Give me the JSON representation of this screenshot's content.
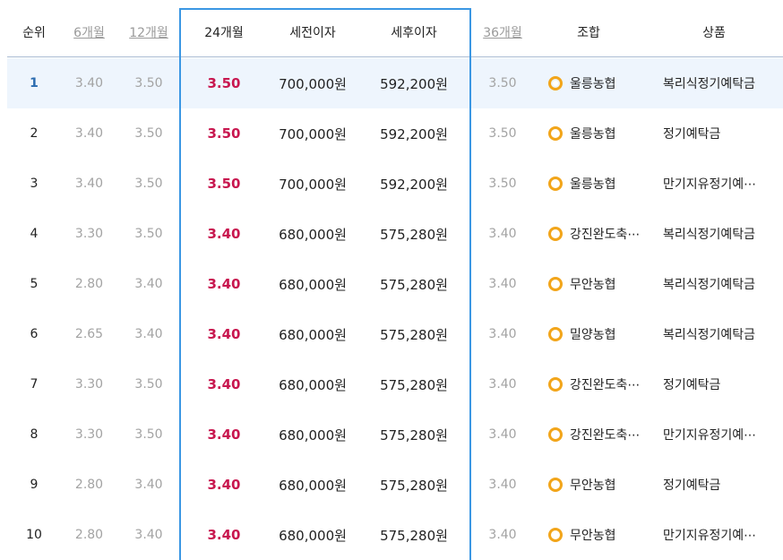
{
  "headers": {
    "rank": "순위",
    "m6": "6개월",
    "m12": "12개월",
    "m24": "24개월",
    "pretax": "세전이자",
    "posttax": "세후이자",
    "m36": "36개월",
    "bank": "조합",
    "product": "상품"
  },
  "colors": {
    "accent": "#3b97e3",
    "rate": "#c8174f",
    "rank_highlight": "#2c6cb0",
    "medal": "#f2a51a"
  },
  "medal_icon": "medal-icon",
  "rows": [
    {
      "rank": "1",
      "m6": "3.40",
      "m12": "3.50",
      "m24": "3.50",
      "pretax": "700,000원",
      "posttax": "592,200원",
      "m36": "3.50",
      "bank": "울릉농협",
      "product": "복리식정기예탁금"
    },
    {
      "rank": "2",
      "m6": "3.40",
      "m12": "3.50",
      "m24": "3.50",
      "pretax": "700,000원",
      "posttax": "592,200원",
      "m36": "3.50",
      "bank": "울릉농협",
      "product": "정기예탁금"
    },
    {
      "rank": "3",
      "m6": "3.40",
      "m12": "3.50",
      "m24": "3.50",
      "pretax": "700,000원",
      "posttax": "592,200원",
      "m36": "3.50",
      "bank": "울릉농협",
      "product": "만기지유정기예⋯"
    },
    {
      "rank": "4",
      "m6": "3.30",
      "m12": "3.50",
      "m24": "3.40",
      "pretax": "680,000원",
      "posttax": "575,280원",
      "m36": "3.40",
      "bank": "강진완도축⋯",
      "product": "복리식정기예탁금"
    },
    {
      "rank": "5",
      "m6": "2.80",
      "m12": "3.40",
      "m24": "3.40",
      "pretax": "680,000원",
      "posttax": "575,280원",
      "m36": "3.40",
      "bank": "무안농협",
      "product": "복리식정기예탁금"
    },
    {
      "rank": "6",
      "m6": "2.65",
      "m12": "3.40",
      "m24": "3.40",
      "pretax": "680,000원",
      "posttax": "575,280원",
      "m36": "3.40",
      "bank": "밀양농협",
      "product": "복리식정기예탁금"
    },
    {
      "rank": "7",
      "m6": "3.30",
      "m12": "3.50",
      "m24": "3.40",
      "pretax": "680,000원",
      "posttax": "575,280원",
      "m36": "3.40",
      "bank": "강진완도축⋯",
      "product": "정기예탁금"
    },
    {
      "rank": "8",
      "m6": "3.30",
      "m12": "3.50",
      "m24": "3.40",
      "pretax": "680,000원",
      "posttax": "575,280원",
      "m36": "3.40",
      "bank": "강진완도축⋯",
      "product": "만기지유정기예⋯"
    },
    {
      "rank": "9",
      "m6": "2.80",
      "m12": "3.40",
      "m24": "3.40",
      "pretax": "680,000원",
      "posttax": "575,280원",
      "m36": "3.40",
      "bank": "무안농협",
      "product": "정기예탁금"
    },
    {
      "rank": "10",
      "m6": "2.80",
      "m12": "3.40",
      "m24": "3.40",
      "pretax": "680,000원",
      "posttax": "575,280원",
      "m36": "3.40",
      "bank": "무안농협",
      "product": "만기지유정기예⋯"
    }
  ]
}
